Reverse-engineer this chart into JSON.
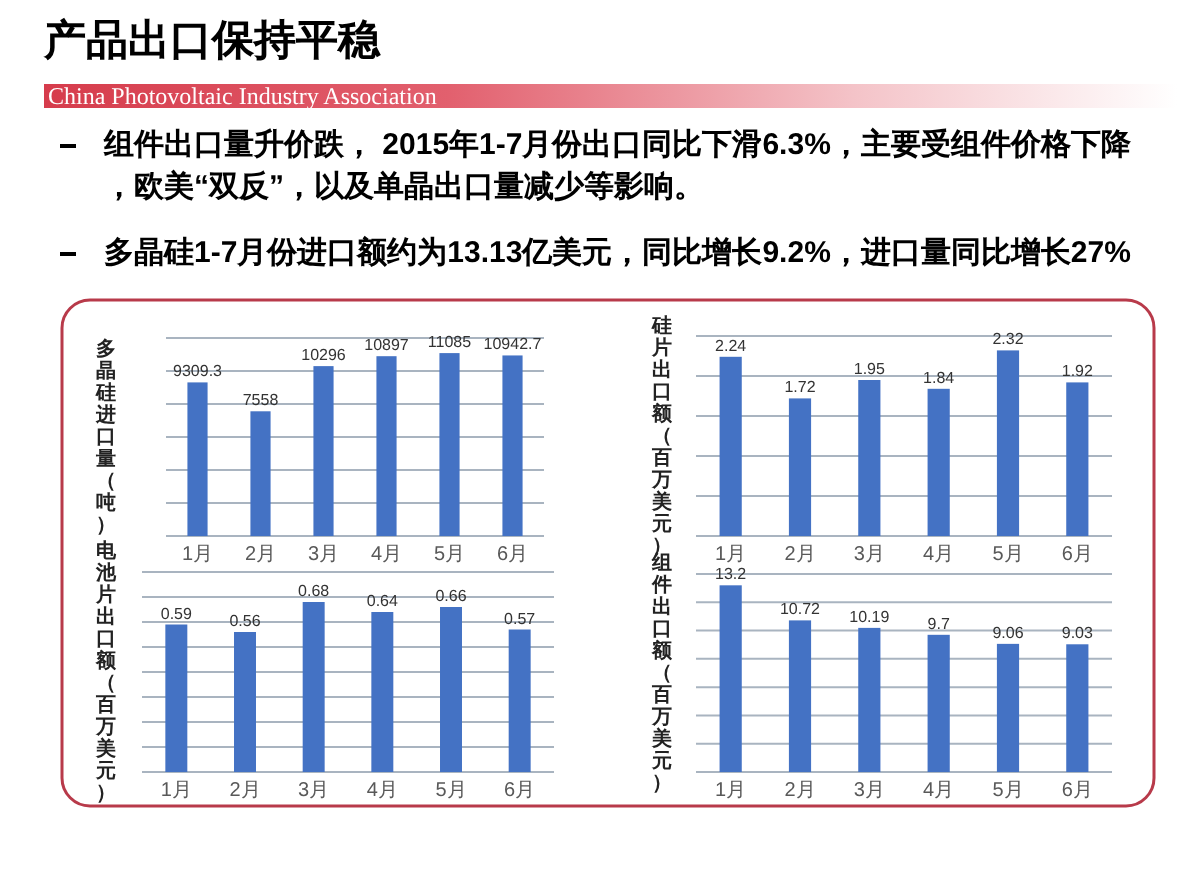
{
  "chart_data": [
    {
      "type": "other",
      "title": "产品出口保持平稳",
      "subtitle": "China Photovoltaic Industry Association",
      "annotations": [
        "组件出口量升价跌， 2015年1-7月份出口同比下滑6.3%，主要受组件价格下降，欧美“双反”，以及单晶出口量减少等影响。",
        "多晶硅1-7月份进口额约为13.13亿美元，同比增长9.2%，进口量同比增长27%"
      ]
    },
    {
      "type": "bar",
      "ylabel": "多晶硅进口量（吨）",
      "categories": [
        "1月",
        "2月",
        "3月",
        "4月",
        "5月",
        "6月"
      ],
      "values": [
        9309.3,
        7558,
        10296,
        10897,
        11085,
        10942.7
      ],
      "color": "#4472c4",
      "ylim": [
        0,
        12000
      ],
      "yticks": [
        {
          "value": 0,
          "label": null
        },
        {
          "value": 2000,
          "label": null
        },
        {
          "value": 4000,
          "label": null
        },
        {
          "value": 6000,
          "label": null
        },
        {
          "value": 8000,
          "label": null
        },
        {
          "value": 10000,
          "label": null
        },
        {
          "value": 12000,
          "label": null
        }
      ],
      "grid": "y",
      "tick_labels": "x",
      "data_labels": true
    },
    {
      "type": "bar",
      "ylabel": "硅片出口额（百万美元）",
      "categories": [
        "1月",
        "2月",
        "3月",
        "4月",
        "5月",
        "6月"
      ],
      "values": [
        2.24,
        1.72,
        1.95,
        1.84,
        2.32,
        1.92
      ],
      "color": "#4472c4",
      "ylim": [
        0,
        2.5
      ],
      "yticks": [
        {
          "value": 0,
          "label": null
        },
        {
          "value": 0.5,
          "label": null
        },
        {
          "value": 1,
          "label": null
        },
        {
          "value": 1.5,
          "label": null
        },
        {
          "value": 2,
          "label": null
        },
        {
          "value": 2.5,
          "label": null
        }
      ],
      "grid": "y",
      "tick_labels": "x",
      "data_labels": true
    },
    {
      "type": "bar",
      "ylabel": "电池片出口额（百万美元）",
      "categories": [
        "1月",
        "2月",
        "3月",
        "4月",
        "5月",
        "6月"
      ],
      "values": [
        0.59,
        0.56,
        0.68,
        0.64,
        0.66,
        0.57
      ],
      "color": "#4472c4",
      "ylim": [
        0,
        0.8
      ],
      "yticks": [
        {
          "value": 0,
          "label": null
        },
        {
          "value": 0.1,
          "label": null
        },
        {
          "value": 0.2,
          "label": null
        },
        {
          "value": 0.3,
          "label": null
        },
        {
          "value": 0.4,
          "label": null
        },
        {
          "value": 0.5,
          "label": null
        },
        {
          "value": 0.6,
          "label": null
        },
        {
          "value": 0.7,
          "label": null
        },
        {
          "value": 0.8,
          "label": null
        }
      ],
      "grid": "y",
      "tick_labels": "x",
      "data_labels": true
    },
    {
      "type": "bar",
      "ylabel": "组件出口额（百万美元）",
      "categories": [
        "1月",
        "2月",
        "3月",
        "4月",
        "5月",
        "6月"
      ],
      "values": [
        13.2,
        10.72,
        10.19,
        9.7,
        9.06,
        9.03
      ],
      "color": "#4472c4",
      "ylim": [
        0,
        14
      ],
      "yticks": [
        {
          "value": 0,
          "label": null
        },
        {
          "value": 2,
          "label": null
        },
        {
          "value": 4,
          "label": null
        },
        {
          "value": 6,
          "label": null
        },
        {
          "value": 8,
          "label": null
        },
        {
          "value": 10,
          "label": null
        },
        {
          "value": 12,
          "label": null
        },
        {
          "value": 14,
          "label": null
        }
      ],
      "grid": "y",
      "tick_labels": "x",
      "data_labels": true
    }
  ]
}
